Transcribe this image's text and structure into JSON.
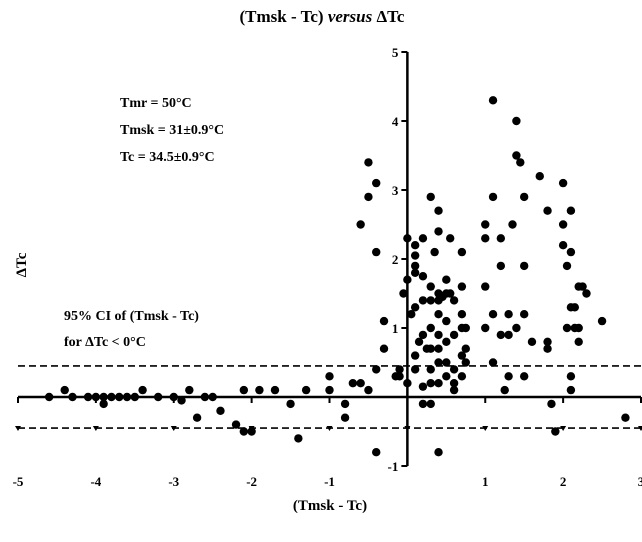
{
  "chart_data": {
    "type": "scatter",
    "title_main": "(Tmsk - Tc) ",
    "title_italic": "versus",
    "title_tail": " ΔTc",
    "xlabel": "(Tmsk - Tc)",
    "ylabel": "ΔTc",
    "xlim": [
      -5,
      3
    ],
    "ylim": [
      -1,
      5
    ],
    "xticks": [
      -5,
      -4,
      -3,
      -2,
      -1,
      1,
      2,
      3
    ],
    "yticks": [
      -1,
      1,
      2,
      3,
      4,
      5
    ],
    "annotations": [
      "Tmr = 50°C",
      "Tmsk = 31±0.9°C",
      "Tc = 34.5±0.9°C"
    ],
    "ci_label": [
      "95% CI of (Tmsk - Tc)",
      "for ΔTc < 0°C"
    ],
    "reference_lines": {
      "upper": 0.45,
      "lower": -0.45
    },
    "points": [
      [
        -4.6,
        0
      ],
      [
        -4.4,
        0.1
      ],
      [
        -4.3,
        0
      ],
      [
        -4.1,
        0
      ],
      [
        -4.0,
        0
      ],
      [
        -3.9,
        -0.1
      ],
      [
        -3.9,
        0
      ],
      [
        -3.8,
        0
      ],
      [
        -3.7,
        0
      ],
      [
        -3.6,
        0
      ],
      [
        -3.5,
        0
      ],
      [
        -3.4,
        0.1
      ],
      [
        -3.2,
        0
      ],
      [
        -3.0,
        0
      ],
      [
        -2.9,
        -0.05
      ],
      [
        -2.8,
        0.1
      ],
      [
        -2.7,
        -0.3
      ],
      [
        -2.6,
        0
      ],
      [
        -2.5,
        0
      ],
      [
        -2.4,
        -0.2
      ],
      [
        -2.2,
        -0.4
      ],
      [
        -2.1,
        -0.5
      ],
      [
        -2.0,
        -0.5
      ],
      [
        -2.1,
        0.1
      ],
      [
        -1.9,
        0.1
      ],
      [
        -1.7,
        0.1
      ],
      [
        -1.5,
        -0.1
      ],
      [
        -1.4,
        -0.6
      ],
      [
        -1.3,
        0.1
      ],
      [
        -1.0,
        0.3
      ],
      [
        -1.0,
        0.1
      ],
      [
        -0.8,
        -0.3
      ],
      [
        -0.8,
        -0.1
      ],
      [
        -0.7,
        0.2
      ],
      [
        -0.6,
        0.2
      ],
      [
        -0.5,
        0.1
      ],
      [
        -0.6,
        2.5
      ],
      [
        -0.5,
        2.9
      ],
      [
        -0.5,
        3.4
      ],
      [
        -0.4,
        3.1
      ],
      [
        -0.4,
        2.1
      ],
      [
        -0.3,
        1.1
      ],
      [
        -0.3,
        0.7
      ],
      [
        -0.4,
        0.4
      ],
      [
        -0.4,
        -0.8
      ],
      [
        -0.1,
        0.4
      ],
      [
        -0.15,
        0.3
      ],
      [
        -0.1,
        0.3
      ],
      [
        -0.05,
        1.5
      ],
      [
        0.0,
        2.3
      ],
      [
        0.0,
        1.7
      ],
      [
        0.05,
        1.2
      ],
      [
        0.0,
        0.2
      ],
      [
        0.1,
        2.2
      ],
      [
        0.1,
        2.05
      ],
      [
        0.1,
        1.9
      ],
      [
        0.1,
        1.8
      ],
      [
        0.1,
        1.3
      ],
      [
        0.1,
        0.6
      ],
      [
        0.1,
        0.4
      ],
      [
        0.15,
        0.8
      ],
      [
        0.2,
        2.3
      ],
      [
        0.2,
        1.75
      ],
      [
        0.2,
        1.4
      ],
      [
        0.2,
        0.9
      ],
      [
        0.2,
        0.15
      ],
      [
        0.2,
        -0.1
      ],
      [
        0.25,
        0.7
      ],
      [
        0.3,
        2.9
      ],
      [
        0.3,
        1.6
      ],
      [
        0.3,
        1.4
      ],
      [
        0.3,
        1.0
      ],
      [
        0.3,
        0.7
      ],
      [
        0.3,
        0.4
      ],
      [
        0.3,
        0.2
      ],
      [
        0.3,
        -0.1
      ],
      [
        0.35,
        2.1
      ],
      [
        0.4,
        2.7
      ],
      [
        0.4,
        2.4
      ],
      [
        0.4,
        1.5
      ],
      [
        0.4,
        1.4
      ],
      [
        0.4,
        1.2
      ],
      [
        0.4,
        0.9
      ],
      [
        0.4,
        0.7
      ],
      [
        0.4,
        0.5
      ],
      [
        0.4,
        0.2
      ],
      [
        0.4,
        -0.8
      ],
      [
        0.45,
        1.45
      ],
      [
        0.5,
        1.7
      ],
      [
        0.5,
        1.5
      ],
      [
        0.5,
        1.1
      ],
      [
        0.5,
        0.8
      ],
      [
        0.5,
        0.5
      ],
      [
        0.5,
        0.3
      ],
      [
        0.55,
        2.3
      ],
      [
        0.55,
        1.5
      ],
      [
        0.6,
        1.4
      ],
      [
        0.6,
        0.9
      ],
      [
        0.6,
        0.4
      ],
      [
        0.6,
        0.2
      ],
      [
        0.6,
        0.1
      ],
      [
        0.7,
        2.1
      ],
      [
        0.7,
        1.6
      ],
      [
        0.7,
        1.2
      ],
      [
        0.7,
        1.0
      ],
      [
        0.7,
        0.6
      ],
      [
        0.7,
        0.3
      ],
      [
        0.75,
        0.7
      ],
      [
        0.75,
        0.5
      ],
      [
        0.75,
        1.0
      ],
      [
        1.0,
        2.3
      ],
      [
        1.0,
        2.5
      ],
      [
        1.0,
        1.6
      ],
      [
        1.0,
        1.0
      ],
      [
        1.1,
        4.3
      ],
      [
        1.1,
        2.9
      ],
      [
        1.1,
        1.2
      ],
      [
        1.1,
        0.5
      ],
      [
        1.2,
        2.3
      ],
      [
        1.2,
        1.9
      ],
      [
        1.2,
        0.9
      ],
      [
        1.25,
        0.1
      ],
      [
        1.3,
        1.2
      ],
      [
        1.3,
        0.9
      ],
      [
        1.3,
        0.3
      ],
      [
        1.35,
        2.5
      ],
      [
        1.4,
        4.0
      ],
      [
        1.4,
        3.5
      ],
      [
        1.4,
        1.0
      ],
      [
        1.45,
        3.4
      ],
      [
        1.5,
        2.9
      ],
      [
        1.5,
        1.9
      ],
      [
        1.5,
        1.2
      ],
      [
        1.5,
        0.3
      ],
      [
        1.6,
        0.8
      ],
      [
        1.7,
        3.2
      ],
      [
        1.8,
        2.7
      ],
      [
        1.8,
        0.8
      ],
      [
        1.8,
        0.7
      ],
      [
        1.85,
        -0.1
      ],
      [
        1.9,
        -0.5
      ],
      [
        2.0,
        3.1
      ],
      [
        2.0,
        2.5
      ],
      [
        2.0,
        2.2
      ],
      [
        2.05,
        1.9
      ],
      [
        2.05,
        1.0
      ],
      [
        2.1,
        2.7
      ],
      [
        2.1,
        2.1
      ],
      [
        2.1,
        1.3
      ],
      [
        2.1,
        0.3
      ],
      [
        2.1,
        0.1
      ],
      [
        2.15,
        1.3
      ],
      [
        2.15,
        1.0
      ],
      [
        2.2,
        1.6
      ],
      [
        2.2,
        0.8
      ],
      [
        2.2,
        1.0
      ],
      [
        2.25,
        1.6
      ],
      [
        2.3,
        1.5
      ],
      [
        2.5,
        1.1
      ],
      [
        2.8,
        -0.3
      ]
    ]
  }
}
